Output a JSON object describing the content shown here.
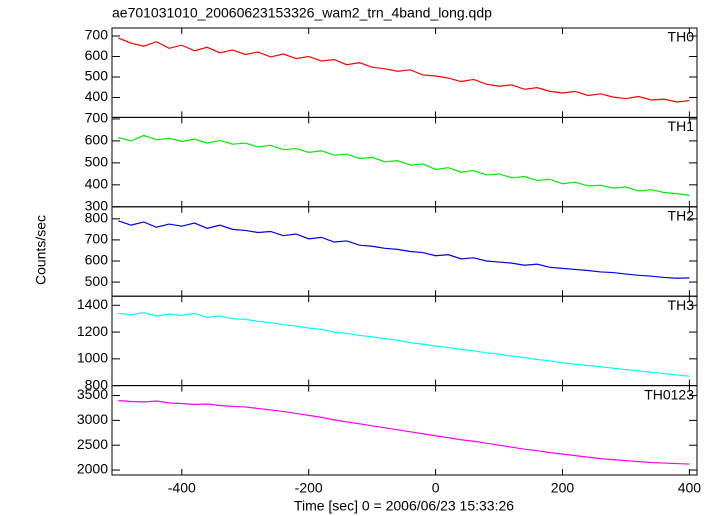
{
  "chart_data": {
    "type": "line",
    "title": "ae701031010_20060623153326_wam2_trn_4band_long.qdp",
    "xlabel": "Time [sec] 0 = 2006/06/23 15:33:26",
    "ylabel": "Counts/sec",
    "x": [
      -500,
      -480,
      -460,
      -440,
      -420,
      -400,
      -380,
      -360,
      -340,
      -320,
      -300,
      -280,
      -260,
      -240,
      -220,
      -200,
      -180,
      -160,
      -140,
      -120,
      -100,
      -80,
      -60,
      -40,
      -20,
      0,
      20,
      40,
      60,
      80,
      100,
      120,
      140,
      160,
      180,
      200,
      220,
      240,
      260,
      280,
      300,
      320,
      340,
      360,
      380,
      400
    ],
    "xlim": [
      -510,
      412
    ],
    "xticks": [
      -400,
      -200,
      0,
      200,
      400
    ],
    "series": [
      {
        "name": "TH0",
        "color": "#ff0000",
        "ylim": [
          303,
          739
        ],
        "yticks": [
          400,
          500,
          600,
          700
        ],
        "values": [
          690,
          665,
          650,
          672,
          640,
          655,
          628,
          645,
          618,
          632,
          610,
          622,
          598,
          612,
          590,
          600,
          578,
          585,
          560,
          570,
          548,
          540,
          528,
          535,
          510,
          505,
          495,
          478,
          488,
          465,
          455,
          462,
          440,
          448,
          430,
          422,
          430,
          410,
          418,
          402,
          395,
          405,
          388,
          392,
          378,
          385
        ]
      },
      {
        "name": "TH1",
        "color": "#00ee00",
        "ylim": [
          300,
          707
        ],
        "yticks": [
          300,
          400,
          500,
          600,
          700
        ],
        "values": [
          615,
          600,
          625,
          605,
          612,
          598,
          608,
          590,
          602,
          585,
          590,
          572,
          580,
          560,
          565,
          548,
          555,
          535,
          540,
          520,
          525,
          505,
          510,
          490,
          495,
          470,
          478,
          458,
          465,
          445,
          450,
          432,
          438,
          420,
          425,
          405,
          412,
          395,
          398,
          385,
          390,
          372,
          378,
          365,
          360,
          352
        ]
      },
      {
        "name": "TH2",
        "color": "#0000ee",
        "ylim": [
          433,
          857
        ],
        "yticks": [
          500,
          600,
          700,
          800
        ],
        "values": [
          790,
          770,
          785,
          760,
          775,
          765,
          780,
          755,
          770,
          750,
          745,
          735,
          740,
          720,
          728,
          705,
          712,
          690,
          695,
          675,
          670,
          660,
          655,
          645,
          640,
          625,
          630,
          610,
          615,
          600,
          595,
          590,
          580,
          585,
          570,
          565,
          560,
          555,
          548,
          545,
          538,
          532,
          528,
          522,
          518,
          520
        ]
      },
      {
        "name": "TH3",
        "color": "#00ffff",
        "ylim": [
          800,
          1468
        ],
        "yticks": [
          800,
          1000,
          1200,
          1400
        ],
        "values": [
          1340,
          1330,
          1345,
          1320,
          1335,
          1325,
          1340,
          1310,
          1320,
          1300,
          1295,
          1280,
          1270,
          1255,
          1245,
          1230,
          1220,
          1200,
          1190,
          1175,
          1165,
          1150,
          1140,
          1120,
          1110,
          1095,
          1085,
          1070,
          1060,
          1045,
          1035,
          1020,
          1010,
          995,
          985,
          970,
          960,
          950,
          940,
          930,
          920,
          910,
          900,
          890,
          880,
          870
        ]
      },
      {
        "name": "TH0123",
        "color": "#ff00ff",
        "ylim": [
          1900,
          3700
        ],
        "yticks": [
          2000,
          2500,
          3000,
          3500
        ],
        "values": [
          3400,
          3380,
          3370,
          3390,
          3350,
          3340,
          3320,
          3330,
          3300,
          3280,
          3270,
          3240,
          3210,
          3180,
          3140,
          3100,
          3060,
          3010,
          2970,
          2930,
          2890,
          2850,
          2810,
          2770,
          2730,
          2690,
          2650,
          2610,
          2580,
          2540,
          2500,
          2460,
          2420,
          2390,
          2350,
          2320,
          2290,
          2260,
          2230,
          2210,
          2190,
          2170,
          2150,
          2140,
          2130,
          2120
        ]
      }
    ]
  }
}
